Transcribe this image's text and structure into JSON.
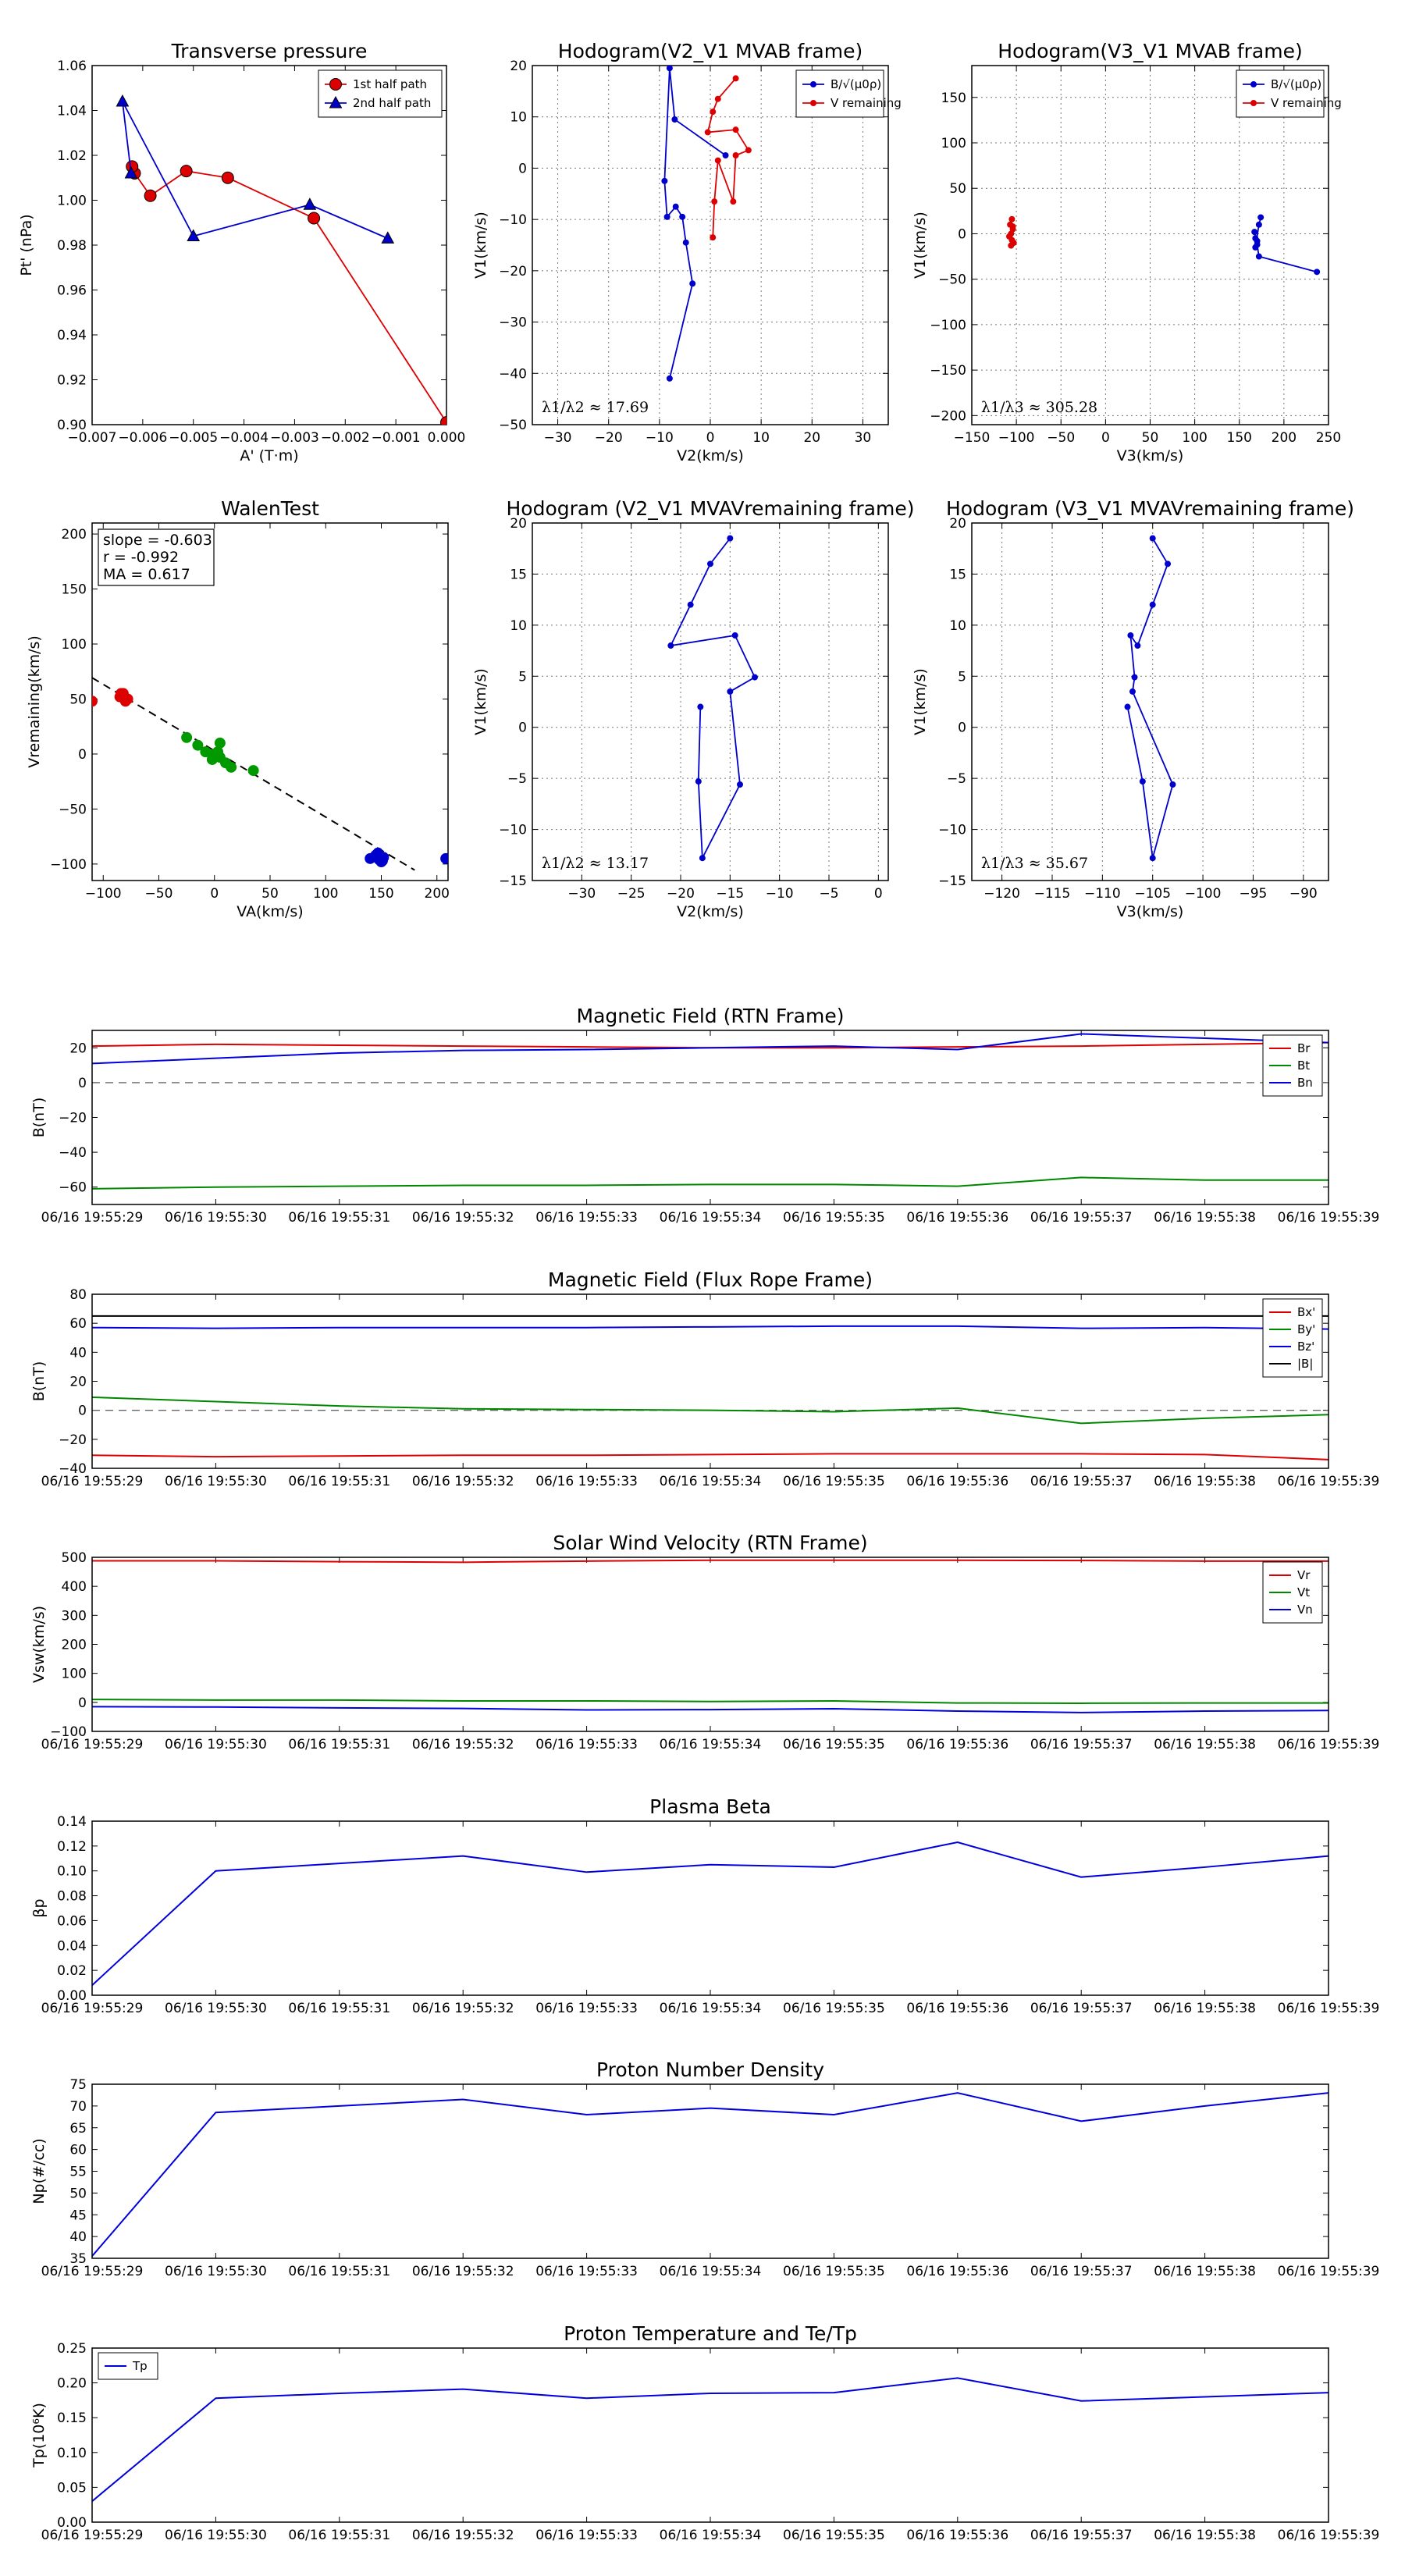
{
  "chart_data": [
    {
      "id": "pt",
      "type": "line",
      "title": "Transverse pressure",
      "xlabel": "A' (T·m)",
      "ylabel": "Pt' (nPa)",
      "xlim": [
        -0.007,
        0.0
      ],
      "ylim": [
        0.9,
        1.06
      ],
      "xticks": [
        -0.007,
        -0.006,
        -0.005,
        -0.004,
        -0.003,
        -0.002,
        -0.001,
        0.0
      ],
      "xtick_labels": [
        "−0.007",
        "−0.006",
        "−0.005",
        "−0.004",
        "−0.003",
        "−0.002",
        "−0.001",
        "0.000"
      ],
      "yticks": [
        0.9,
        0.92,
        0.94,
        0.96,
        0.98,
        1.0,
        1.02,
        1.04,
        1.06
      ],
      "ytick_labels": [
        "0.90",
        "0.92",
        "0.94",
        "0.96",
        "0.98",
        "1.00",
        "1.02",
        "1.04",
        "1.06"
      ],
      "grid": false,
      "legend": "top-right",
      "series": [
        {
          "name": "1st half path",
          "color": "#dd0000",
          "marker": "circle",
          "x": [
            0.0,
            -0.00262,
            -0.00432,
            -0.00514,
            -0.00585,
            -0.00616,
            -0.00621
          ],
          "y": [
            0.901,
            0.992,
            1.01,
            1.013,
            1.002,
            1.012,
            1.015
          ]
        },
        {
          "name": "2nd half path",
          "color": "#0000cc",
          "marker": "triangle",
          "x": [
            -0.00623,
            -0.0064,
            -0.005,
            -0.0027,
            -0.00116
          ],
          "y": [
            1.012,
            1.044,
            0.984,
            0.998,
            0.983
          ]
        }
      ]
    },
    {
      "id": "h1",
      "type": "line",
      "title": "Hodogram(V2_V1 MVAB frame)",
      "xlabel": "V2(km/s)",
      "ylabel": "V1(km/s)",
      "xlim": [
        -35,
        35
      ],
      "ylim": [
        -50,
        20
      ],
      "xticks": [
        -30,
        -20,
        -10,
        0,
        10,
        20,
        30
      ],
      "xtick_labels": [
        "−30",
        "−20",
        "−10",
        "0",
        "10",
        "20",
        "30"
      ],
      "yticks": [
        -50,
        -40,
        -30,
        -20,
        -10,
        0,
        10,
        20
      ],
      "ytick_labels": [
        "−50",
        "−40",
        "−30",
        "−20",
        "−10",
        "0",
        "10",
        "20"
      ],
      "grid": true,
      "legend": "top-right",
      "annotation": "λ1/λ2 ≈ 17.69",
      "series": [
        {
          "name": "B/√(μ0ρ)",
          "color": "#0000cc",
          "marker": "dot",
          "x": [
            3,
            -7,
            -8,
            -9,
            -8.5,
            -6.8,
            -5.5,
            -4.8,
            -3.5,
            -8
          ],
          "y": [
            2.5,
            9.5,
            19.5,
            -2.5,
            -9.5,
            -7.5,
            -9.5,
            -14.5,
            -22.5,
            -41
          ]
        },
        {
          "name": "V remaining",
          "color": "#dd0000",
          "marker": "dot",
          "x": [
            5,
            1.5,
            0.5,
            -0.5,
            5,
            7.5,
            5,
            4.5,
            1.5,
            0.8,
            0.5
          ],
          "y": [
            17.5,
            13.5,
            11,
            7,
            7.5,
            3.5,
            2.5,
            -6.5,
            1.5,
            -6.5,
            -13.5
          ]
        }
      ]
    },
    {
      "id": "h2",
      "type": "line",
      "title": "Hodogram(V3_V1 MVAB frame)",
      "xlabel": "V3(km/s)",
      "ylabel": "V1(km/s)",
      "xlim": [
        -150,
        250
      ],
      "ylim": [
        -210,
        185
      ],
      "xticks": [
        -150,
        -100,
        -50,
        0,
        50,
        100,
        150,
        200,
        250
      ],
      "xtick_labels": [
        "−150",
        "−100",
        "−50",
        "0",
        "50",
        "100",
        "150",
        "200",
        "250"
      ],
      "yticks": [
        -200,
        -150,
        -100,
        -50,
        0,
        50,
        100,
        150
      ],
      "ytick_labels": [
        "−200",
        "−150",
        "−100",
        "−50",
        "0",
        "50",
        "100",
        "150"
      ],
      "grid": true,
      "legend": "top-right",
      "annotation": "λ1/λ3 ≈ 305.28",
      "series": [
        {
          "name": "B/√(μ0ρ)",
          "color": "#0000cc",
          "marker": "dot",
          "x": [
            237,
            172,
            170,
            168,
            167,
            170,
            168,
            172,
            174
          ],
          "y": [
            -42,
            -25,
            -12,
            -5,
            2,
            -8,
            -15,
            10,
            18
          ]
        },
        {
          "name": "V remaining",
          "color": "#dd0000",
          "marker": "dot",
          "x": [
            -105,
            -107,
            -104,
            -106,
            -108,
            -105,
            -103,
            -106,
            -104
          ],
          "y": [
            16,
            10,
            5,
            0,
            -3,
            -7,
            -10,
            -13,
            8
          ]
        }
      ]
    },
    {
      "id": "walen",
      "type": "scatter",
      "title": "WalenTest",
      "xlabel": "VA(km/s)",
      "ylabel": "Vremaining(km/s)",
      "xlim": [
        -110,
        210
      ],
      "ylim": [
        -115,
        210
      ],
      "xticks": [
        -100,
        -50,
        0,
        50,
        100,
        150,
        200
      ],
      "xtick_labels": [
        "−100",
        "−50",
        "0",
        "50",
        "100",
        "150",
        "200"
      ],
      "yticks": [
        -100,
        -50,
        0,
        50,
        100,
        150,
        200
      ],
      "ytick_labels": [
        "−100",
        "−50",
        "0",
        "50",
        "100",
        "150",
        "200"
      ],
      "grid": false,
      "annotation_lines": [
        "slope = -0.603",
        "r = -0.992",
        "MA = 0.617"
      ],
      "fit": {
        "slope": -0.603,
        "intercept": 3,
        "x_from": -110,
        "x_to": 180
      },
      "series": [
        {
          "name": "red",
          "color": "#dd0000",
          "x": [
            -110,
            -85,
            -82,
            -80,
            -78,
            -84
          ],
          "y": [
            48,
            52,
            55,
            48,
            50,
            55
          ]
        },
        {
          "name": "green",
          "color": "#009900",
          "x": [
            -25,
            -15,
            -8,
            -2,
            0,
            3,
            5,
            10,
            15,
            35,
            5,
            3
          ],
          "y": [
            15,
            8,
            2,
            -5,
            0,
            -2,
            10,
            -8,
            -12,
            -15,
            -3,
            2
          ]
        },
        {
          "name": "blue",
          "color": "#0000cc",
          "x": [
            140,
            145,
            148,
            150,
            152,
            147,
            151,
            208
          ],
          "y": [
            -95,
            -92,
            -96,
            -98,
            -94,
            -90,
            -97,
            -95
          ]
        }
      ]
    },
    {
      "id": "h3",
      "type": "line",
      "title": "Hodogram (V2_V1 MVAVremaining frame)",
      "xlabel": "V2(km/s)",
      "ylabel": "V1(km/s)",
      "xlim": [
        -35,
        1
      ],
      "ylim": [
        -15,
        20
      ],
      "xticks": [
        -30,
        -25,
        -20,
        -15,
        -10,
        -5,
        0
      ],
      "xtick_labels": [
        "−30",
        "−25",
        "−20",
        "−15",
        "−10",
        "−5",
        "0"
      ],
      "yticks": [
        -15,
        -10,
        -5,
        0,
        5,
        10,
        15,
        20
      ],
      "ytick_labels": [
        "−15",
        "−10",
        "−5",
        "0",
        "5",
        "10",
        "15",
        "20"
      ],
      "grid": true,
      "annotation": "λ1/λ2 ≈ 13.17",
      "series": [
        {
          "name": "path",
          "color": "#0000cc",
          "marker": "dot",
          "x": [
            -18,
            -18.2,
            -17.8,
            -14,
            -15,
            -12.5,
            -14.5,
            -21,
            -19,
            -17,
            -15
          ],
          "y": [
            2,
            -5.3,
            -12.8,
            -5.6,
            3.5,
            4.9,
            9,
            8,
            12,
            16,
            18.5
          ]
        }
      ]
    },
    {
      "id": "h4",
      "type": "line",
      "title": "Hodogram (V3_V1 MVAVremaining frame)",
      "xlabel": "V3(km/s)",
      "ylabel": "V1(km/s)",
      "xlim": [
        -123,
        -87.5
      ],
      "ylim": [
        -15,
        20
      ],
      "xticks": [
        -120,
        -115,
        -110,
        -105,
        -100,
        -95,
        -90
      ],
      "xtick_labels": [
        "−120",
        "−115",
        "−110",
        "−105",
        "−100",
        "−95",
        "−90"
      ],
      "yticks": [
        -15,
        -10,
        -5,
        0,
        5,
        10,
        15,
        20
      ],
      "ytick_labels": [
        "−15",
        "−10",
        "−5",
        "0",
        "5",
        "10",
        "15",
        "20"
      ],
      "grid": true,
      "annotation": "λ1/λ3 ≈ 35.67",
      "series": [
        {
          "name": "path",
          "color": "#0000cc",
          "marker": "dot",
          "x": [
            -107.5,
            -106,
            -105,
            -103,
            -107,
            -106.8,
            -107.2,
            -106.5,
            -105,
            -103.5,
            -105
          ],
          "y": [
            2,
            -5.3,
            -12.8,
            -5.6,
            3.5,
            4.9,
            9,
            8,
            12,
            16,
            18.5
          ]
        }
      ]
    },
    {
      "id": "brtn",
      "type": "line",
      "title": "Magnetic Field (RTN Frame)",
      "ylabel": "B(nT)",
      "ylim": [
        -70,
        30
      ],
      "yticks": [
        -60,
        -40,
        -20,
        0,
        20
      ],
      "ytick_labels": [
        "−60",
        "−40",
        "−20",
        "0",
        "20"
      ],
      "zero_line": true,
      "legend": "top-right",
      "series": [
        {
          "name": "Br",
          "color": "#dd0000",
          "values": [
            21,
            22,
            21.5,
            21,
            20.5,
            20,
            20,
            20.5,
            21,
            22,
            23
          ]
        },
        {
          "name": "Bt",
          "color": "#008800",
          "values": [
            -61,
            -60,
            -59.5,
            -59,
            -59,
            -58.5,
            -58.5,
            -59.5,
            -54.5,
            -56,
            -56
          ]
        },
        {
          "name": "Bn",
          "color": "#0000dd",
          "values": [
            11,
            14,
            17,
            18.5,
            19,
            20,
            21,
            19,
            28,
            25.5,
            23
          ]
        }
      ]
    },
    {
      "id": "bfr",
      "type": "line",
      "title": "Magnetic Field (Flux Rope Frame)",
      "ylabel": "B(nT)",
      "ylim": [
        -40,
        80
      ],
      "yticks": [
        -40,
        -20,
        0,
        20,
        40,
        60,
        80
      ],
      "ytick_labels": [
        "−40",
        "−20",
        "0",
        "20",
        "40",
        "60",
        "80"
      ],
      "zero_line": true,
      "legend": "top-right",
      "series": [
        {
          "name": "Bx'",
          "color": "#dd0000",
          "values": [
            -31,
            -32,
            -31.5,
            -31,
            -31,
            -30.5,
            -30,
            -30,
            -30,
            -30.5,
            -34
          ]
        },
        {
          "name": "By'",
          "color": "#008800",
          "values": [
            9,
            6,
            3,
            1,
            0.5,
            0,
            -1,
            1.5,
            -9,
            -5.5,
            -3
          ]
        },
        {
          "name": "Bz'",
          "color": "#0000dd",
          "values": [
            57,
            56.5,
            57,
            57,
            57,
            57.5,
            58,
            58,
            56.5,
            57,
            56
          ]
        },
        {
          "name": "|B|",
          "color": "#000000",
          "values": [
            65,
            65,
            65,
            65,
            65,
            65,
            65,
            65,
            65,
            65,
            65
          ]
        }
      ]
    },
    {
      "id": "vsw",
      "type": "line",
      "title": "Solar Wind Velocity (RTN Frame)",
      "ylabel": "Vsw(km/s)",
      "ylim": [
        -100,
        500
      ],
      "yticks": [
        -100,
        0,
        100,
        200,
        300,
        400,
        500
      ],
      "ytick_labels": [
        "−100",
        "0",
        "100",
        "200",
        "300",
        "400",
        "500"
      ],
      "legend": "top-right",
      "series": [
        {
          "name": "Vr",
          "color": "#dd0000",
          "values": [
            488,
            488,
            485,
            483,
            487,
            490,
            490,
            490,
            489,
            487,
            487
          ]
        },
        {
          "name": "Vt",
          "color": "#008800",
          "values": [
            10,
            8,
            8,
            5,
            5,
            3,
            5,
            -2,
            -3,
            -2,
            -2
          ]
        },
        {
          "name": "Vn",
          "color": "#0000dd",
          "values": [
            -15,
            -16,
            -19,
            -21,
            -26,
            -25,
            -22,
            -30,
            -35,
            -30,
            -28
          ]
        }
      ]
    },
    {
      "id": "beta",
      "type": "line",
      "title": "Plasma Beta",
      "ylabel": "βp",
      "ylim": [
        0.0,
        0.14
      ],
      "yticks": [
        0.0,
        0.02,
        0.04,
        0.06,
        0.08,
        0.1,
        0.12,
        0.14
      ],
      "ytick_labels": [
        "0.00",
        "0.02",
        "0.04",
        "0.06",
        "0.08",
        "0.10",
        "0.12",
        "0.14"
      ],
      "series": [
        {
          "name": "beta",
          "color": "#0000dd",
          "values": [
            0.008,
            0.1,
            0.106,
            0.112,
            0.099,
            0.105,
            0.103,
            0.123,
            0.095,
            0.103,
            0.112
          ]
        }
      ]
    },
    {
      "id": "np",
      "type": "line",
      "title": "Proton Number Density",
      "ylabel": "Np(#/cc)",
      "ylim": [
        35,
        75
      ],
      "yticks": [
        35,
        40,
        45,
        50,
        55,
        60,
        65,
        70,
        75
      ],
      "ytick_labels": [
        "35",
        "40",
        "45",
        "50",
        "55",
        "60",
        "65",
        "70",
        "75"
      ],
      "series": [
        {
          "name": "Np",
          "color": "#0000dd",
          "values": [
            35.5,
            68.5,
            70,
            71.5,
            68,
            69.5,
            68,
            73,
            66.5,
            70,
            73
          ]
        }
      ]
    },
    {
      "id": "tp",
      "type": "line",
      "title": "Proton Temperature and Te/Tp",
      "ylabel": "Tp(10⁶K)",
      "ylim": [
        0.0,
        0.25
      ],
      "yticks": [
        0.0,
        0.05,
        0.1,
        0.15,
        0.2,
        0.25
      ],
      "ytick_labels": [
        "0.00",
        "0.05",
        "0.10",
        "0.15",
        "0.20",
        "0.25"
      ],
      "legend": "top-left",
      "series": [
        {
          "name": "Tp",
          "color": "#0000dd",
          "values": [
            0.03,
            0.178,
            0.185,
            0.191,
            0.178,
            0.185,
            0.186,
            0.207,
            0.174,
            0.18,
            0.186
          ]
        }
      ]
    }
  ],
  "time_ticks": [
    "06/16 19:55:29",
    "06/16 19:55:30",
    "06/16 19:55:31",
    "06/16 19:55:32",
    "06/16 19:55:33",
    "06/16 19:55:34",
    "06/16 19:55:35",
    "06/16 19:55:36",
    "06/16 19:55:37",
    "06/16 19:55:38",
    "06/16 19:55:39"
  ]
}
